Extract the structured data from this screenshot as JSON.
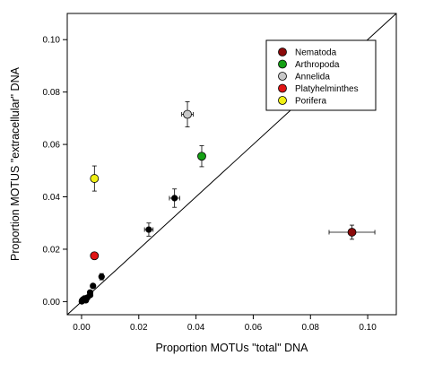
{
  "chart_data": {
    "type": "scatter",
    "xlabel": "Proportion MOTUs \"total\" DNA",
    "ylabel": "Proportion MOTUS \"extracellular\" DNA",
    "xlim": [
      -0.005,
      0.11
    ],
    "ylim": [
      -0.005,
      0.11
    ],
    "x_ticks": [
      "0.00",
      "0.02",
      "0.04",
      "0.06",
      "0.08",
      "0.10"
    ],
    "y_ticks": [
      "0.00",
      "0.02",
      "0.04",
      "0.06",
      "0.08",
      "0.10"
    ],
    "x_tick_values": [
      0.0,
      0.02,
      0.04,
      0.06,
      0.08,
      0.1
    ],
    "y_tick_values": [
      0.0,
      0.02,
      0.04,
      0.06,
      0.08,
      0.1
    ],
    "reference_line": "1:1",
    "legend_position": "top-right",
    "legend": [
      {
        "label": "Nematoda",
        "color": "#8b0a0a"
      },
      {
        "label": "Arthropoda",
        "color": "#14a014"
      },
      {
        "label": "Annelida",
        "color": "#c8c8c8"
      },
      {
        "label": "Platyhelminthes",
        "color": "#e01414"
      },
      {
        "label": "Porifera",
        "color": "#f0f014"
      }
    ],
    "points": [
      {
        "group": "Nematoda",
        "x": 0.0945,
        "y": 0.0265,
        "xerr": 0.008,
        "yerr": 0.0027,
        "color": "#8b0a0a"
      },
      {
        "group": "Arthropoda",
        "x": 0.042,
        "y": 0.0555,
        "xerr": 0.0012,
        "yerr": 0.004,
        "color": "#14a014"
      },
      {
        "group": "Annelida",
        "x": 0.037,
        "y": 0.0715,
        "xerr": 0.002,
        "yerr": 0.0048,
        "color": "#c8c8c8"
      },
      {
        "group": "Platyhelminthes",
        "x": 0.0045,
        "y": 0.0175,
        "xerr": 0.0008,
        "yerr": 0.001,
        "color": "#e01414"
      },
      {
        "group": "Porifera",
        "x": 0.0045,
        "y": 0.047,
        "xerr": 0.0007,
        "yerr": 0.0048,
        "color": "#f0f014"
      },
      {
        "group": "",
        "x": 0.0325,
        "y": 0.0395,
        "xerr": 0.0018,
        "yerr": 0.0035,
        "color": "#000000"
      },
      {
        "group": "",
        "x": 0.0235,
        "y": 0.0275,
        "xerr": 0.0015,
        "yerr": 0.0025,
        "color": "#000000"
      },
      {
        "group": "",
        "x": 0.007,
        "y": 0.0095,
        "xerr": 0.0007,
        "yerr": 0.0012,
        "color": "#000000"
      },
      {
        "group": "",
        "x": 0.004,
        "y": 0.006,
        "xerr": 0.0004,
        "yerr": 0.0008,
        "color": "#000000"
      },
      {
        "group": "",
        "x": 0.003,
        "y": 0.0035,
        "xerr": 0.0004,
        "yerr": 0.0005,
        "color": "#000000"
      },
      {
        "group": "",
        "x": 0.003,
        "y": 0.0025,
        "xerr": 0.0003,
        "yerr": 0.0004,
        "color": "#000000"
      },
      {
        "group": "",
        "x": 0.002,
        "y": 0.0015,
        "xerr": 0.0003,
        "yerr": 0.0003,
        "color": "#000000"
      },
      {
        "group": "",
        "x": 0.001,
        "y": 0.0012,
        "xerr": 0.0002,
        "yerr": 0.0003,
        "color": "#000000"
      },
      {
        "group": "",
        "x": 0.0005,
        "y": 0.0008,
        "xerr": 0.0002,
        "yerr": 0.0002,
        "color": "#000000"
      },
      {
        "group": "",
        "x": 0.0002,
        "y": 0.0004,
        "xerr": 0.0001,
        "yerr": 0.0002,
        "color": "#000000"
      },
      {
        "group": "",
        "x": 0.0001,
        "y": 0.0001,
        "xerr": 0.0001,
        "yerr": 0.0001,
        "color": "#000000"
      },
      {
        "group": "",
        "x": 0.0015,
        "y": 0.0005,
        "xerr": 0.0002,
        "yerr": 0.0002,
        "color": "#000000"
      }
    ]
  }
}
